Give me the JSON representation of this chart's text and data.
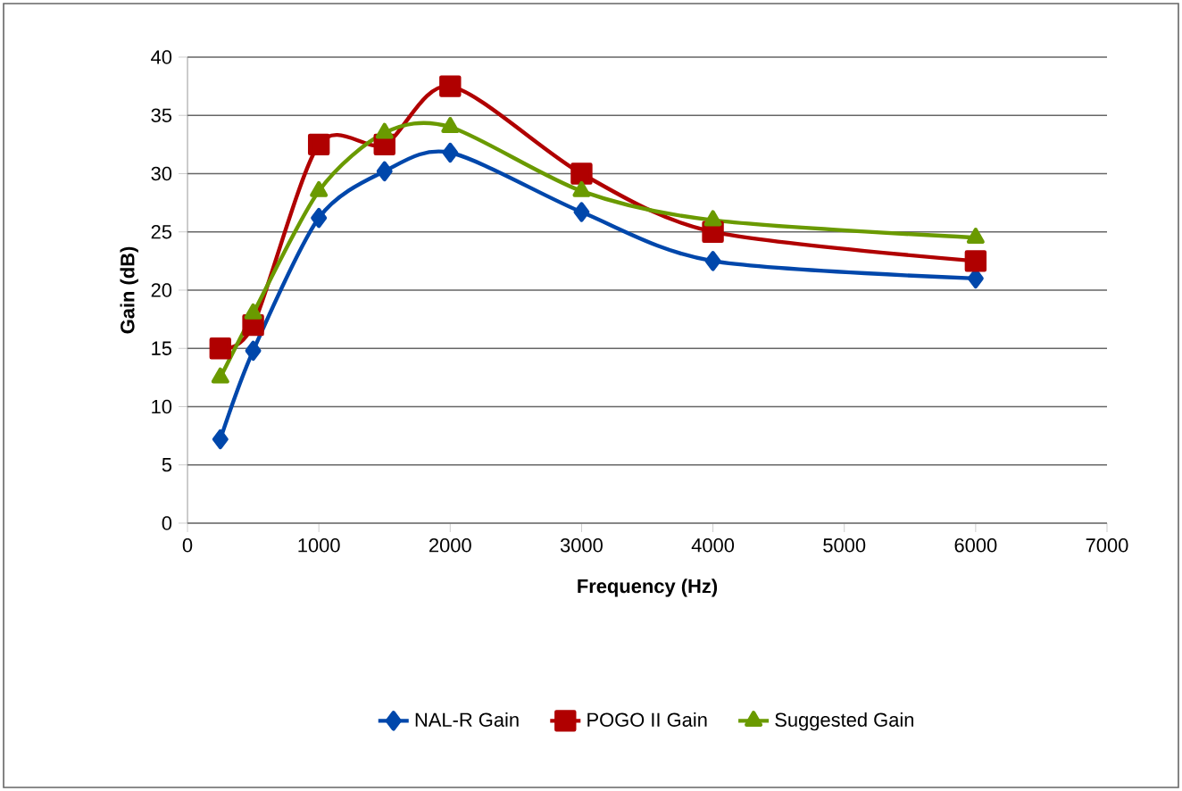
{
  "chart_data": {
    "type": "line",
    "xlabel": "Frequency (Hz)",
    "ylabel": "Gain (dB)",
    "x": [
      250,
      500,
      1000,
      1500,
      2000,
      3000,
      4000,
      6000
    ],
    "series": [
      {
        "name": "NAL-R Gain",
        "color": "#0047ab",
        "marker": "diamond",
        "values": [
          7.2,
          14.8,
          26.2,
          30.2,
          31.8,
          26.7,
          22.5,
          21
        ]
      },
      {
        "name": "POGO II Gain",
        "color": "#b00000",
        "marker": "square",
        "values": [
          15,
          17,
          32.5,
          32.5,
          37.5,
          30,
          25,
          22.5
        ]
      },
      {
        "name": "Suggested Gain",
        "color": "#6a9a00",
        "marker": "triangle",
        "values": [
          12.5,
          18,
          28.5,
          33.5,
          34,
          28.5,
          26,
          24.5
        ]
      }
    ],
    "xlim": [
      0,
      7000
    ],
    "xticks": [
      0,
      1000,
      2000,
      3000,
      4000,
      5000,
      6000,
      7000
    ],
    "ylim": [
      0,
      40
    ],
    "yticks": [
      0,
      5,
      10,
      15,
      20,
      25,
      30,
      35,
      40
    ],
    "grid": "y",
    "legend": "bottom",
    "line_style": "solid"
  }
}
